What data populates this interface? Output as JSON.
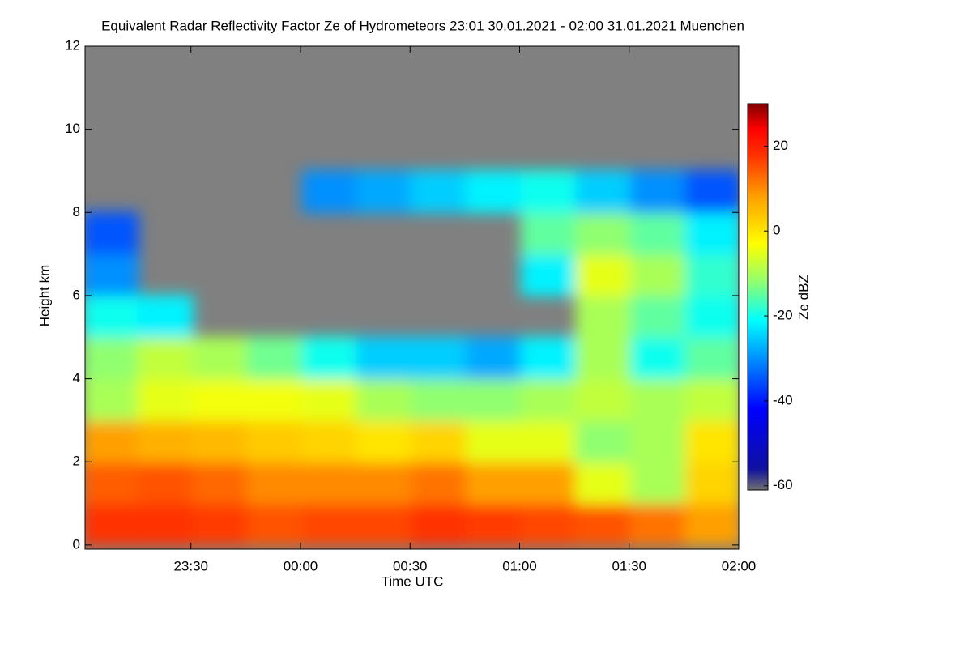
{
  "chart_data": {
    "type": "heatmap",
    "title": "Equivalent Radar Reflectivity Factor Ze of Hydrometeors   23:01 30.01.2021 - 02:00 31.01.2021 Muenchen",
    "x_label": "Time UTC",
    "y_label": "Height km",
    "colorbar_label": "Ze dBZ",
    "background": "#808080",
    "xlim": [
      -59,
      120
    ],
    "xticks": [
      {
        "value": -30,
        "label": "23:30"
      },
      {
        "value": 0,
        "label": "00:00"
      },
      {
        "value": 30,
        "label": "00:30"
      },
      {
        "value": 60,
        "label": "01:00"
      },
      {
        "value": 90,
        "label": "01:30"
      },
      {
        "value": 120,
        "label": "02:00"
      }
    ],
    "ylim": [
      -0.1,
      12
    ],
    "yticks": [
      0,
      2,
      4,
      6,
      8,
      10,
      12
    ],
    "clim": [
      -61,
      30
    ],
    "cticks": [
      -60,
      -40,
      -20,
      0,
      20
    ],
    "colormap": [
      [
        -61,
        "#707070"
      ],
      [
        -56,
        "#1010a0"
      ],
      [
        -42,
        "#0000ff"
      ],
      [
        -30,
        "#0090ff"
      ],
      [
        -21,
        "#00ffff"
      ],
      [
        -12,
        "#90ff70"
      ],
      [
        -3,
        "#ffff00"
      ],
      [
        8,
        "#ffa000"
      ],
      [
        18,
        "#ff3000"
      ],
      [
        24,
        "#ff0000"
      ],
      [
        30,
        "#800000"
      ]
    ],
    "x": [
      -52,
      -37,
      -22,
      -7,
      8,
      23,
      38,
      53,
      68,
      83,
      98,
      113
    ],
    "y": [
      0.5,
      1.5,
      2.5,
      3.5,
      4.5,
      5.5,
      6.5,
      7.5,
      8.5,
      9.5,
      10.5,
      11.5
    ],
    "values": [
      [
        18,
        14,
        8,
        -10,
        -12,
        -20,
        -30,
        -35,
        null,
        null,
        null,
        null
      ],
      [
        18,
        15,
        6,
        -5,
        -8,
        -22,
        null,
        null,
        null,
        null,
        null,
        null
      ],
      [
        17,
        13,
        5,
        -4,
        -10,
        null,
        null,
        null,
        null,
        null,
        null,
        null
      ],
      [
        15,
        10,
        3,
        -4,
        -14,
        null,
        null,
        null,
        null,
        null,
        null,
        null
      ],
      [
        16,
        10,
        2,
        -5,
        -20,
        null,
        null,
        null,
        -30,
        null,
        null,
        null
      ],
      [
        16,
        10,
        0,
        -10,
        -25,
        null,
        null,
        null,
        -28,
        null,
        null,
        null
      ],
      [
        18,
        12,
        2,
        -12,
        -25,
        null,
        null,
        null,
        -25,
        null,
        null,
        null
      ],
      [
        17,
        8,
        -5,
        -12,
        -28,
        null,
        null,
        null,
        -22,
        null,
        null,
        null
      ],
      [
        16,
        8,
        -5,
        -10,
        -22,
        null,
        -22,
        -15,
        -20,
        null,
        null,
        null
      ],
      [
        15,
        -5,
        -12,
        -8,
        -10,
        -10,
        -5,
        -12,
        -25,
        null,
        null,
        null
      ],
      [
        12,
        -10,
        -10,
        -10,
        -20,
        -15,
        -10,
        -15,
        -30,
        null,
        null,
        null
      ],
      [
        8,
        2,
        0,
        -8,
        -15,
        -20,
        -18,
        -22,
        -35,
        null,
        null,
        null
      ]
    ]
  }
}
